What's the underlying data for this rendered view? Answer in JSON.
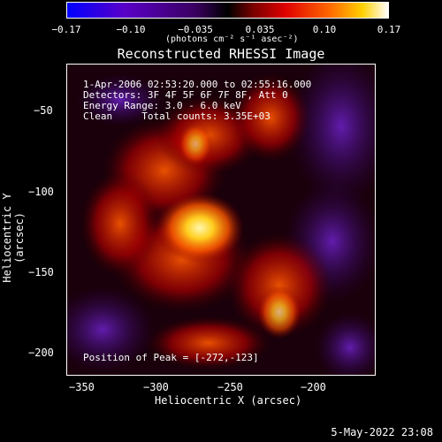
{
  "colorbar": {
    "ticks": [
      "−0.17",
      "−0.10",
      "−0.035",
      "0.035",
      "0.10",
      "0.17"
    ],
    "units": "(photons cm⁻² s⁻¹ asec⁻²)"
  },
  "title": "Reconstructed RHESSI Image",
  "info": {
    "time": "1-Apr-2006 02:53:20.000 to 02:55:16.000",
    "detectors": "Detectors: 3F 4F 5F 6F 7F 8F, Att 0",
    "energy": "Energy Range: 3.0 - 6.0 keV",
    "clean": "Clean     Total counts: 3.35E+03",
    "peak": "Position of Peak = [-272,-123]"
  },
  "axes": {
    "xlabel": "Heliocentric X (arcsec)",
    "ylabel": "Heliocentric Y (arcsec)",
    "xticks": [
      "−350",
      "−300",
      "−250",
      "−200"
    ],
    "yticks": [
      "−50",
      "−100",
      "−150",
      "−200"
    ]
  },
  "footer": {
    "date": "5-May-2022 23:08"
  },
  "colors": {
    "background": "#000000",
    "frame": "#ffffff"
  }
}
